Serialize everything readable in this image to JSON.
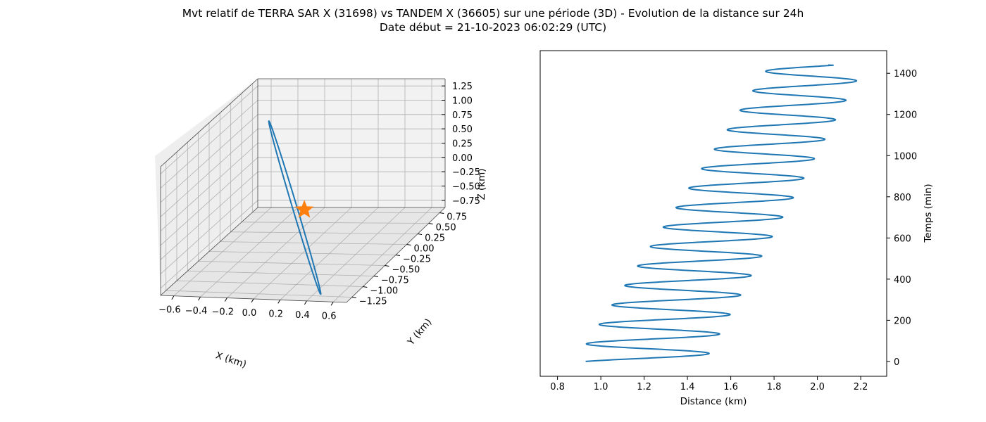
{
  "figure": {
    "title_line1": "Mvt relatif de TERRA SAR X (31698) vs TANDEM X (36605) sur une période (3D) - Evolution de la distance sur 24h",
    "title_line2": "Date début = 21-10-2023 06:02:29 (UTC)"
  },
  "colors": {
    "series": "#1f77b4",
    "marker": "#ff7f0e",
    "pane_side": "#f2f2f2",
    "pane_floor": "#e6e6e6",
    "grid": "#b0b0b0"
  },
  "chart_data": [
    {
      "type": "line",
      "projection": "3d",
      "xlabel": "X (km)",
      "ylabel": "Y (km)",
      "zlabel": "Z (km)",
      "xticks": [
        "−0.6",
        "−0.4",
        "−0.2",
        "0.0",
        "0.2",
        "0.4",
        "0.6"
      ],
      "yticks": [
        "−1.25",
        "−1.00",
        "−0.75",
        "−0.50",
        "−0.25",
        "0.00",
        "0.25",
        "0.50",
        "0.75"
      ],
      "zticks": [
        "−0.75",
        "−0.50",
        "−0.25",
        "0.00",
        "0.25",
        "0.50",
        "0.75",
        "1.00",
        "1.25"
      ],
      "xlim": [
        -0.65,
        0.7
      ],
      "ylim": [
        -1.3,
        0.85
      ],
      "zlim": [
        -0.85,
        1.4
      ],
      "grid": true,
      "series": [
        {
          "kind": "ellipse-trajectory",
          "points": [
            {
              "x": -0.52,
              "y": 0.7,
              "z": 0.78
            },
            {
              "x": 0.48,
              "y": -1.2,
              "z": -0.8
            }
          ]
        }
      ],
      "marker": {
        "shape": "star",
        "x": 0.0,
        "y": -0.1,
        "z": -0.15
      }
    },
    {
      "type": "line",
      "xlabel": "Distance (km)",
      "ylabel": "Temps (min)",
      "xticks": [
        "0.8",
        "1.0",
        "1.2",
        "1.4",
        "1.6",
        "1.8",
        "2.0",
        "2.2"
      ],
      "yticks": [
        "0",
        "200",
        "400",
        "600",
        "800",
        "1000",
        "1200",
        "1400"
      ],
      "xlim": [
        0.72,
        2.32
      ],
      "ylim": [
        -72,
        1510
      ],
      "grid": false,
      "series": [
        {
          "oscillation_period_min": 94.6,
          "time_min": [
            0,
            1440
          ],
          "center_start": 1.18,
          "center_end": 2.0,
          "amplitude_start": 0.3,
          "amplitude_end": 0.22,
          "start_distance": 0.93,
          "end_distance": 2.05
        }
      ]
    }
  ]
}
